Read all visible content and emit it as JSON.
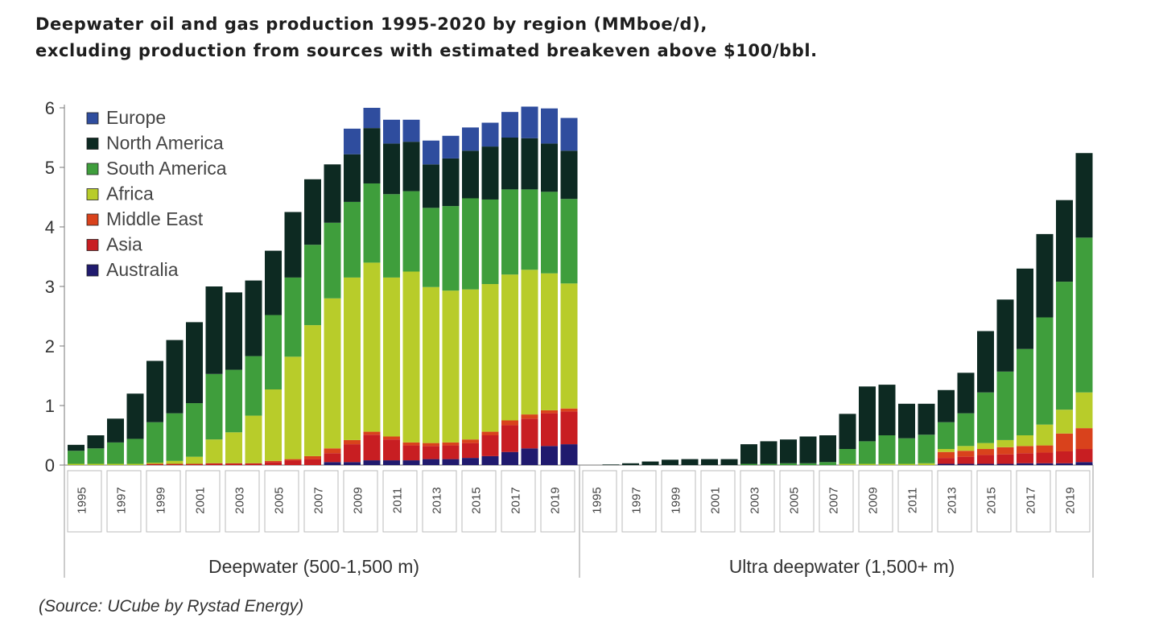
{
  "title_line1": "Deepwater oil and gas production 1995-2020 by region (MMboe/d),",
  "title_line2": "excluding production from sources with estimated breakeven above $100/bbl.",
  "source": "(Source: UCube by Rystad Energy)",
  "colors": {
    "Europe": "#2f4d9e",
    "North America": "#0d2a22",
    "South America": "#3f9e3c",
    "Africa": "#b8cc2a",
    "Middle East": "#d9421c",
    "Asia": "#c81e22",
    "Australia": "#201a6e"
  },
  "chart_data": {
    "type": "bar",
    "stacked": true,
    "ylim": [
      0,
      6
    ],
    "yticks": [
      0,
      1,
      2,
      3,
      4,
      5,
      6
    ],
    "legend_position": "top-left",
    "grid": false,
    "groups": [
      "Deepwater (500-1,500 m)",
      "Ultra deepwater (1,500+ m)"
    ],
    "x_tick_labels": [
      "1995",
      "1997",
      "1999",
      "2001",
      "2003",
      "2005",
      "2007",
      "2009",
      "2011",
      "2013",
      "2015",
      "2017",
      "2019"
    ],
    "years": [
      1995,
      1996,
      1997,
      1998,
      1999,
      2000,
      2001,
      2002,
      2003,
      2004,
      2005,
      2006,
      2007,
      2008,
      2009,
      2010,
      2011,
      2012,
      2013,
      2014,
      2015,
      2016,
      2017,
      2018,
      2019,
      2020
    ],
    "series_names": [
      "Australia",
      "Asia",
      "Middle East",
      "Africa",
      "South America",
      "North America",
      "Europe"
    ],
    "legend_order": [
      "Europe",
      "North America",
      "South America",
      "Africa",
      "Middle East",
      "Asia",
      "Australia"
    ],
    "deepwater": [
      [
        0,
        0,
        0,
        0.02,
        0.22,
        0.1,
        0
      ],
      [
        0,
        0,
        0,
        0.02,
        0.26,
        0.22,
        0
      ],
      [
        0,
        0,
        0,
        0.02,
        0.36,
        0.4,
        0
      ],
      [
        0,
        0,
        0,
        0.02,
        0.42,
        0.76,
        0
      ],
      [
        0,
        0.02,
        0,
        0.02,
        0.68,
        1.03,
        0
      ],
      [
        0,
        0.02,
        0,
        0.05,
        0.8,
        1.23,
        0
      ],
      [
        0,
        0.02,
        0,
        0.12,
        0.9,
        1.36,
        0
      ],
      [
        0,
        0.03,
        0,
        0.4,
        1.1,
        1.47,
        0
      ],
      [
        0,
        0.03,
        0,
        0.52,
        1.05,
        1.3,
        0
      ],
      [
        0,
        0.03,
        0,
        0.8,
        1.0,
        1.27,
        0
      ],
      [
        0,
        0.05,
        0.02,
        1.2,
        1.25,
        1.08,
        0
      ],
      [
        0,
        0.08,
        0.02,
        1.72,
        1.33,
        1.1,
        0
      ],
      [
        0,
        0.1,
        0.05,
        2.2,
        1.35,
        1.1,
        0
      ],
      [
        0.05,
        0.15,
        0.08,
        2.52,
        1.27,
        0.98,
        0
      ],
      [
        0.05,
        0.3,
        0.07,
        2.73,
        1.27,
        0.8,
        0.43
      ],
      [
        0.08,
        0.43,
        0.05,
        2.84,
        1.33,
        0.93,
        0.34
      ],
      [
        0.08,
        0.35,
        0.05,
        2.67,
        1.4,
        0.85,
        0.4
      ],
      [
        0.08,
        0.25,
        0.05,
        2.87,
        1.35,
        0.83,
        0.37
      ],
      [
        0.1,
        0.22,
        0.05,
        2.62,
        1.33,
        0.73,
        0.4
      ],
      [
        0.1,
        0.23,
        0.05,
        2.55,
        1.42,
        0.8,
        0.38
      ],
      [
        0.12,
        0.25,
        0.06,
        2.52,
        1.53,
        0.8,
        0.39
      ],
      [
        0.15,
        0.35,
        0.06,
        2.48,
        1.42,
        0.89,
        0.4
      ],
      [
        0.22,
        0.45,
        0.08,
        2.45,
        1.43,
        0.87,
        0.43
      ],
      [
        0.28,
        0.5,
        0.07,
        2.43,
        1.35,
        0.86,
        0.53
      ],
      [
        0.32,
        0.55,
        0.05,
        2.3,
        1.37,
        0.81,
        0.59
      ],
      [
        0.35,
        0.55,
        0.05,
        2.1,
        1.42,
        0.81,
        0.55
      ]
    ],
    "ultra_deepwater": [
      [
        0,
        0,
        0,
        0,
        0,
        0,
        0
      ],
      [
        0,
        0,
        0,
        0,
        0,
        0.01,
        0
      ],
      [
        0,
        0,
        0,
        0,
        0,
        0.03,
        0
      ],
      [
        0,
        0,
        0,
        0,
        0,
        0.06,
        0
      ],
      [
        0,
        0,
        0,
        0,
        0,
        0.09,
        0
      ],
      [
        0,
        0,
        0,
        0,
        0,
        0.1,
        0
      ],
      [
        0,
        0,
        0,
        0,
        0,
        0.1,
        0
      ],
      [
        0,
        0,
        0,
        0,
        0,
        0.1,
        0
      ],
      [
        0,
        0,
        0,
        0,
        0.02,
        0.33,
        0
      ],
      [
        0,
        0,
        0,
        0,
        0.02,
        0.38,
        0
      ],
      [
        0,
        0,
        0,
        0,
        0.03,
        0.4,
        0
      ],
      [
        0,
        0,
        0,
        0,
        0.03,
        0.45,
        0
      ],
      [
        0,
        0,
        0,
        0,
        0.05,
        0.45,
        0
      ],
      [
        0,
        0,
        0,
        0.02,
        0.25,
        0.59,
        0
      ],
      [
        0,
        0,
        0,
        0.02,
        0.38,
        0.92,
        0
      ],
      [
        0,
        0,
        0,
        0.02,
        0.48,
        0.85,
        0
      ],
      [
        0,
        0,
        0,
        0.02,
        0.43,
        0.58,
        0
      ],
      [
        0,
        0,
        0,
        0.03,
        0.48,
        0.52,
        0
      ],
      [
        0.02,
        0.1,
        0.1,
        0.05,
        0.45,
        0.54,
        0
      ],
      [
        0.02,
        0.12,
        0.1,
        0.08,
        0.55,
        0.68,
        0
      ],
      [
        0.02,
        0.15,
        0.1,
        0.1,
        0.85,
        1.03,
        0
      ],
      [
        0.02,
        0.16,
        0.12,
        0.12,
        1.15,
        1.21,
        0
      ],
      [
        0.03,
        0.17,
        0.12,
        0.18,
        1.45,
        1.35,
        0
      ],
      [
        0.03,
        0.18,
        0.12,
        0.35,
        1.8,
        1.4,
        0
      ],
      [
        0.03,
        0.2,
        0.3,
        0.4,
        2.15,
        1.37,
        0
      ],
      [
        0.05,
        0.22,
        0.35,
        0.6,
        2.6,
        1.42,
        0
      ]
    ]
  }
}
